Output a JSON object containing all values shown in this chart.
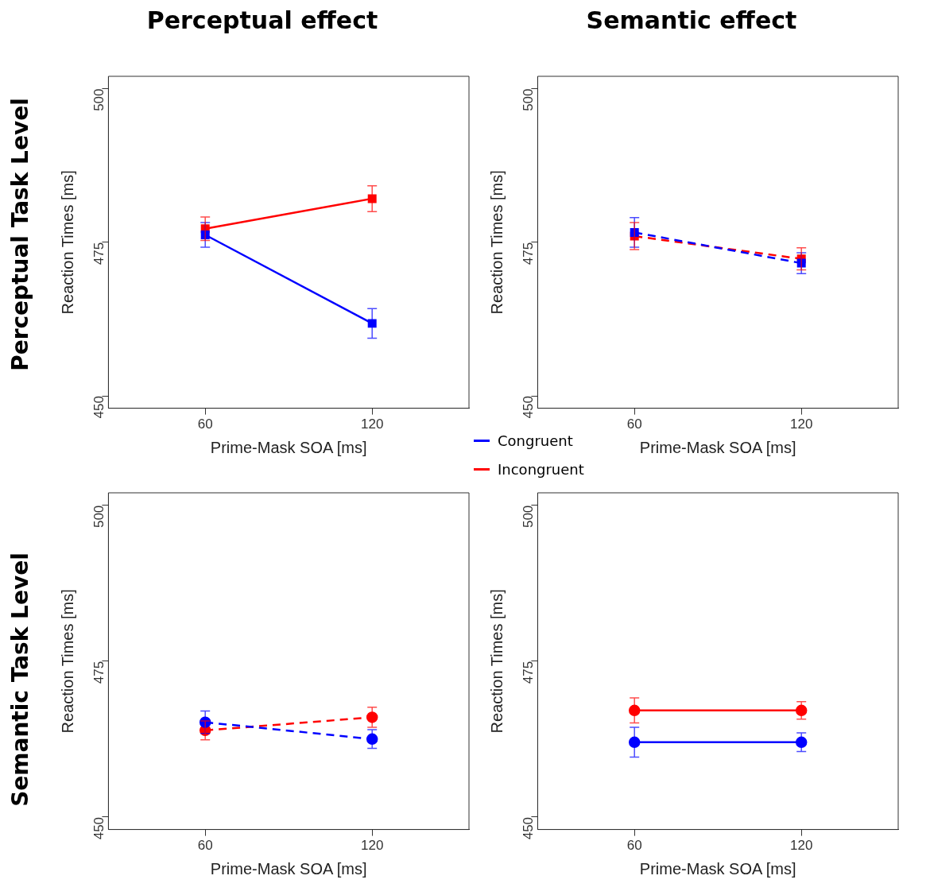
{
  "chart_data": [
    {
      "type": "line",
      "title": "Perceptual effect",
      "annotations": [
        "Perceptual Task Level"
      ],
      "xlabel": "Prime-Mask SOA [ms]",
      "ylabel": "Reaction Times [ms]",
      "categories": [
        "60",
        "120"
      ],
      "ylim": [
        448,
        502
      ],
      "yticks": [
        450,
        475,
        500
      ],
      "grid": false,
      "legend": "right",
      "marker": "square",
      "series": [
        {
          "name": "Congruent",
          "color": "#0000ff",
          "line_style": "solid",
          "values": [
            476.2,
            461.8
          ],
          "errors": [
            2.0,
            2.4
          ]
        },
        {
          "name": "Incongruent",
          "color": "#ff0000",
          "line_style": "solid",
          "values": [
            477.2,
            482.1
          ],
          "errors": [
            1.9,
            2.1
          ]
        }
      ]
    },
    {
      "type": "line",
      "title": "Semantic effect",
      "xlabel": "Prime-Mask SOA [ms]",
      "ylabel": "Reaction Times [ms]",
      "categories": [
        "60",
        "120"
      ],
      "ylim": [
        448,
        502
      ],
      "yticks": [
        450,
        475,
        500
      ],
      "grid": false,
      "marker": "square",
      "series": [
        {
          "color": "#0000ff",
          "line_style": "dashed",
          "values": [
            476.6,
            471.6
          ],
          "errors": [
            2.4,
            1.7
          ]
        },
        {
          "color": "#ff0000",
          "line_style": "dashed",
          "values": [
            476.0,
            472.3
          ],
          "errors": [
            2.2,
            1.8
          ]
        }
      ]
    },
    {
      "type": "line",
      "annotations": [
        "Semantic Task Level"
      ],
      "xlabel": "Prime-Mask SOA [ms]",
      "ylabel": "Reaction Times [ms]",
      "categories": [
        "60",
        "120"
      ],
      "ylim": [
        448,
        502
      ],
      "yticks": [
        450,
        475,
        500
      ],
      "grid": false,
      "marker": "circle",
      "series": [
        {
          "color": "#0000ff",
          "line_style": "dashed",
          "values": [
            465.2,
            462.5
          ],
          "errors": [
            1.8,
            1.5
          ]
        },
        {
          "color": "#ff0000",
          "line_style": "dashed",
          "values": [
            463.9,
            466.0
          ],
          "errors": [
            1.5,
            1.6
          ]
        }
      ]
    },
    {
      "type": "line",
      "xlabel": "Prime-Mask SOA [ms]",
      "ylabel": "Reaction Times [ms]",
      "categories": [
        "60",
        "120"
      ],
      "ylim": [
        448,
        502
      ],
      "yticks": [
        450,
        475,
        500
      ],
      "grid": false,
      "marker": "circle",
      "series": [
        {
          "color": "#0000ff",
          "line_style": "solid",
          "values": [
            462.0,
            462.0
          ],
          "errors": [
            2.4,
            1.5
          ]
        },
        {
          "color": "#ff0000",
          "line_style": "solid",
          "values": [
            467.1,
            467.1
          ],
          "errors": [
            2.0,
            1.4
          ]
        }
      ]
    }
  ]
}
